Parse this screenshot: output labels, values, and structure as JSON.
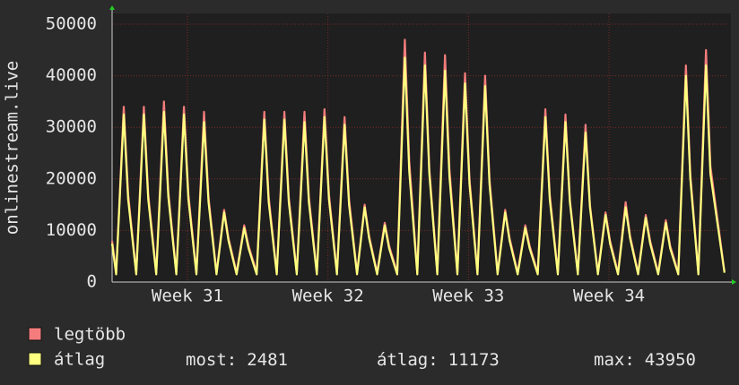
{
  "chart_data": {
    "type": "line",
    "y_label": "onlinestream.live",
    "x": [
      0,
      0.2,
      0.58,
      0.8,
      1.2,
      1.58,
      1.8,
      2.2,
      2.58,
      2.8,
      3.2,
      3.58,
      3.8,
      4.2,
      4.58,
      4.8,
      5.2,
      5.58,
      5.8,
      6.2,
      6.58,
      6.8,
      7.2,
      7.58,
      7.8,
      8.2,
      8.58,
      8.8,
      9.2,
      9.58,
      9.8,
      10.2,
      10.58,
      10.8,
      11.2,
      11.58,
      11.8,
      12.2,
      12.58,
      12.8,
      13.2,
      13.58,
      13.8,
      14.2,
      14.58,
      14.8,
      15.2,
      15.58,
      15.8,
      16.2,
      16.58,
      16.8,
      17.2,
      17.58,
      17.8,
      18.2,
      18.58,
      18.8,
      19.2,
      19.58,
      19.8,
      20.2,
      20.58,
      20.8,
      21.2,
      21.58,
      21.8,
      22.2,
      22.58,
      22.8,
      23.2,
      23.58,
      23.8,
      24.2,
      24.58,
      24.8,
      25.2,
      25.58,
      25.8,
      26.2,
      26.58,
      26.8,
      27.2,
      27.58,
      27.8,
      28.2,
      28.58,
      28.8,
      29.2,
      29.58,
      29.8,
      30.5
    ],
    "series": [
      {
        "name": "legtöbb",
        "color": "#f47c7c",
        "values": [
          8000,
          1800,
          34000,
          17000,
          1800,
          34000,
          17000,
          1800,
          35000,
          17500,
          1800,
          34000,
          17000,
          1800,
          33000,
          16500,
          1800,
          14000,
          8500,
          1800,
          11000,
          7000,
          1800,
          33000,
          16500,
          1800,
          33000,
          16500,
          1800,
          33000,
          16500,
          1800,
          33500,
          17000,
          1800,
          32000,
          16000,
          1800,
          15000,
          9000,
          1800,
          11500,
          7000,
          1800,
          47000,
          23500,
          1800,
          44500,
          22000,
          1800,
          44000,
          22000,
          1800,
          40500,
          20000,
          1800,
          40000,
          20000,
          1800,
          14000,
          8500,
          1800,
          11000,
          7000,
          1800,
          33500,
          17000,
          1800,
          32500,
          16000,
          1800,
          30500,
          15000,
          1800,
          13500,
          8000,
          1800,
          15500,
          9000,
          1800,
          13000,
          8000,
          1800,
          12000,
          7000,
          1800,
          42000,
          21000,
          1800,
          45000,
          22500,
          2000
        ]
      },
      {
        "name": "átlag",
        "color": "#ffff80",
        "values": [
          7500,
          1500,
          32500,
          16000,
          1500,
          32500,
          16000,
          1500,
          33000,
          16500,
          1500,
          32500,
          16000,
          1500,
          31000,
          15500,
          1500,
          13500,
          8000,
          1500,
          10500,
          6500,
          1500,
          31500,
          15500,
          1500,
          31500,
          15500,
          1500,
          31000,
          15500,
          1500,
          32000,
          16000,
          1500,
          30500,
          15000,
          1500,
          14500,
          8500,
          1500,
          11000,
          6500,
          1500,
          43500,
          21500,
          1500,
          42000,
          21000,
          1500,
          41000,
          20500,
          1500,
          38500,
          19000,
          1500,
          38000,
          19000,
          1500,
          13500,
          8000,
          1500,
          10500,
          6500,
          1500,
          32000,
          16000,
          1500,
          31000,
          15500,
          1500,
          29000,
          14500,
          1500,
          13000,
          7500,
          1500,
          14500,
          8500,
          1500,
          12500,
          7500,
          1500,
          11500,
          6500,
          1500,
          40000,
          20000,
          1500,
          42000,
          21000,
          1800
        ]
      }
    ],
    "xlim": [
      0,
      30.6
    ],
    "xticks": [
      {
        "value": 3.75,
        "label": "Week 31"
      },
      {
        "value": 10.75,
        "label": "Week 32"
      },
      {
        "value": 17.75,
        "label": "Week 33"
      },
      {
        "value": 24.75,
        "label": "Week 34"
      }
    ],
    "ylim": [
      0,
      50000
    ],
    "yticks": [
      0,
      10000,
      20000,
      30000,
      40000,
      50000
    ],
    "grid": true,
    "stats": [
      {
        "label": "most:",
        "value": 2481
      },
      {
        "label": "átlag:",
        "value": 11173
      },
      {
        "label": "max:",
        "value": 43950
      }
    ]
  }
}
